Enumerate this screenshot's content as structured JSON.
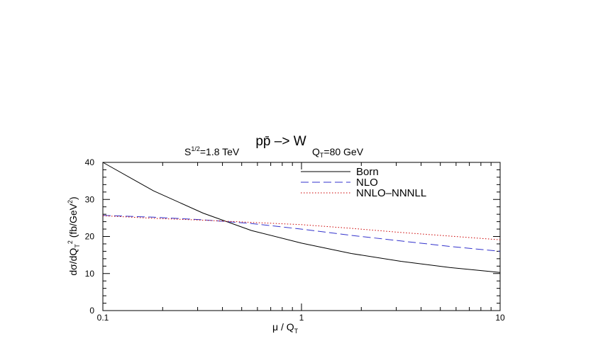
{
  "chart_data": {
    "type": "line",
    "title": "pp̄ –> W",
    "subtitle": {
      "energy_label": "S",
      "energy_sup": "1/2",
      "energy_value": "=1.8 TeV",
      "qt_label": "Q",
      "qt_sub": "T",
      "qt_value": "=80 GeV"
    },
    "xlabel": {
      "main": "μ / Q",
      "sub": "T"
    },
    "ylabel": {
      "part1": "dσ/dQ",
      "sub1": "T",
      "sup1": "2",
      "part2": " (fb/GeV",
      "sup2": "2",
      "part3": ")"
    },
    "x_scale": "log",
    "xlim": [
      0.1,
      10
    ],
    "ylim": [
      0,
      40
    ],
    "x_ticks": [
      {
        "value": 0.1,
        "label": "0.1"
      },
      {
        "value": 1,
        "label": "1"
      },
      {
        "value": 10,
        "label": "10"
      }
    ],
    "y_ticks": [
      {
        "value": 0,
        "label": "0"
      },
      {
        "value": 10,
        "label": "10"
      },
      {
        "value": 20,
        "label": "20"
      },
      {
        "value": 30,
        "label": "30"
      },
      {
        "value": 40,
        "label": "40"
      }
    ],
    "grid": false,
    "legend_position": "top-right",
    "series": [
      {
        "name": "Born",
        "style": "solid",
        "color": "#000000",
        "points": [
          [
            0.1,
            40.0
          ],
          [
            0.18,
            32.3
          ],
          [
            0.32,
            26.3
          ],
          [
            0.56,
            21.6
          ],
          [
            1.0,
            18.2
          ],
          [
            1.78,
            15.4
          ],
          [
            3.16,
            13.3
          ],
          [
            5.62,
            11.6
          ],
          [
            10.0,
            10.3
          ]
        ]
      },
      {
        "name": "NLO",
        "style": "dashed",
        "color": "#3333cc",
        "points": [
          [
            0.1,
            25.7
          ],
          [
            0.18,
            25.2
          ],
          [
            0.32,
            24.5
          ],
          [
            0.56,
            23.5
          ],
          [
            1.0,
            22.0
          ],
          [
            1.78,
            20.3
          ],
          [
            3.16,
            18.8
          ],
          [
            5.62,
            17.3
          ],
          [
            10.0,
            16.0
          ]
        ]
      },
      {
        "name": "NNLO–NNNLL",
        "style": "dotted",
        "color": "#cc0000",
        "points": [
          [
            0.1,
            25.6
          ],
          [
            0.18,
            24.9
          ],
          [
            0.32,
            24.4
          ],
          [
            0.56,
            23.8
          ],
          [
            1.0,
            23.2
          ],
          [
            1.78,
            22.2
          ],
          [
            3.16,
            21.1
          ],
          [
            5.62,
            20.1
          ],
          [
            10.0,
            19.1
          ]
        ]
      }
    ]
  }
}
